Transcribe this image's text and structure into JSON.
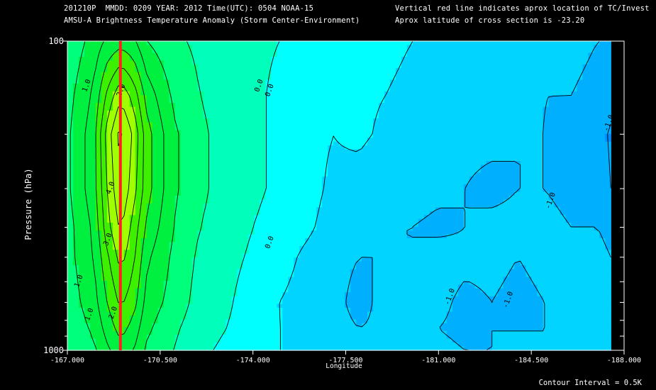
{
  "header": {
    "line1": "201210P  MMDD: 0209 YEAR: 2012 Time(UTC): 0504 NOAA-15",
    "line2": "AMSU-A Brightness Temperature Anomaly (Storm Center-Environment)",
    "line3": "Vertical red line indicates aprox location of TC/Invest",
    "line4": "Aprox latitude of cross section is -23.20"
  },
  "footer": {
    "contour_interval": "Contour Interval = 0.5K"
  },
  "colors": {
    "background": "#000000",
    "storm_line": "#ff2020",
    "levels": [
      "#008cff",
      "#00b0ff",
      "#00d4ff",
      "#00ffff",
      "#00ffbb",
      "#00ff7a",
      "#00f040",
      "#3cf000",
      "#a0ff00"
    ]
  },
  "chart_data": {
    "type": "heatmap",
    "subtype": "contour",
    "xlabel": "Longitude",
    "ylabel": "Pressure (hPa)",
    "x_ticks": [
      "-167.000",
      "-170.500",
      "-174.000",
      "-177.500",
      "-181.000",
      "-184.500",
      "-188.000"
    ],
    "y_ticks": [
      "100",
      "1000"
    ],
    "y_scale": "log",
    "xlim": [
      -167.0,
      -188.0
    ],
    "ylim": [
      1000,
      100
    ],
    "contour_interval_K": 0.5,
    "storm_longitude": -169.0,
    "longitudes": [
      -167.0,
      -168.0,
      -168.5,
      -169.0,
      -169.5,
      -170.0,
      -171.0,
      -172.0,
      -173.0,
      -174.0,
      -175.0,
      -176.0,
      -177.0,
      -178.0,
      -179.0,
      -180.0,
      -181.0,
      -182.0,
      -183.0,
      -184.0,
      -185.0,
      -186.0,
      -187.0,
      -187.5
    ],
    "pressures": [
      100,
      150,
      200,
      300,
      400,
      500,
      700,
      850,
      1000
    ],
    "anomaly_K": [
      [
        0.6,
        1.2,
        1.6,
        1.8,
        1.6,
        1.0,
        0.6,
        0.4,
        0.2,
        0.1,
        0.0,
        -0.1,
        -0.2,
        -0.3,
        -0.4,
        -0.5,
        -0.5,
        -0.6,
        -0.6,
        -0.7,
        -0.8,
        -0.9,
        -1.0,
        -1.0
      ],
      [
        0.8,
        1.6,
        2.6,
        3.4,
        2.8,
        1.8,
        0.9,
        0.5,
        0.3,
        0.1,
        -0.1,
        -0.3,
        -0.5,
        -0.4,
        -0.5,
        -0.6,
        -0.6,
        -0.7,
        -0.8,
        -0.9,
        -1.0,
        -1.0,
        -1.1,
        -1.2
      ],
      [
        0.9,
        1.8,
        3.2,
        4.2,
        3.4,
        2.2,
        1.1,
        0.6,
        0.3,
        0.1,
        -0.1,
        -0.3,
        -0.5,
        -0.4,
        -0.6,
        -0.7,
        -0.8,
        -0.9,
        -0.9,
        -1.0,
        -1.0,
        -1.1,
        -1.2,
        -1.6
      ],
      [
        0.9,
        1.8,
        3.0,
        4.0,
        3.2,
        2.2,
        1.1,
        0.6,
        0.3,
        0.1,
        -0.1,
        -0.3,
        -0.6,
        -0.7,
        -0.9,
        -0.8,
        -0.9,
        -1.0,
        -1.1,
        -1.0,
        -1.0,
        -1.1,
        -1.1,
        -1.5
      ],
      [
        0.8,
        1.6,
        2.8,
        3.6,
        2.8,
        1.9,
        1.0,
        0.5,
        0.3,
        0.0,
        -0.2,
        -0.4,
        -0.7,
        -0.9,
        -1.0,
        -1.0,
        -1.1,
        -1.0,
        -0.9,
        -0.9,
        -0.9,
        -1.0,
        -1.0,
        -1.2
      ],
      [
        0.8,
        1.5,
        2.4,
        3.2,
        2.6,
        1.6,
        0.9,
        0.4,
        0.2,
        -0.1,
        -0.3,
        -0.6,
        -0.8,
        -1.0,
        -1.0,
        -1.0,
        -0.8,
        -0.9,
        -0.9,
        -1.0,
        -0.9,
        -0.8,
        -0.8,
        -1.0
      ],
      [
        0.7,
        1.3,
        2.0,
        2.6,
        2.2,
        1.3,
        0.8,
        0.3,
        0.1,
        -0.3,
        -0.5,
        -0.7,
        -0.8,
        -1.2,
        -0.8,
        -0.9,
        -0.9,
        -1.1,
        -1.0,
        -1.1,
        -1.0,
        -0.9,
        -0.8,
        -0.9
      ],
      [
        0.6,
        1.1,
        1.7,
        2.2,
        1.8,
        1.1,
        0.6,
        0.2,
        0.0,
        -0.3,
        -0.5,
        -0.6,
        -0.8,
        -1.0,
        -0.9,
        -0.9,
        -1.0,
        -1.1,
        -1.0,
        -1.0,
        -1.0,
        -1.0,
        -0.9,
        -0.9
      ],
      [
        0.5,
        0.9,
        1.4,
        1.8,
        1.5,
        0.9,
        0.5,
        0.1,
        -0.1,
        -0.3,
        -0.5,
        -0.6,
        -0.8,
        -0.9,
        -0.8,
        -0.9,
        -0.9,
        -1.0,
        -1.0,
        -1.0,
        -1.0,
        -1.0,
        -1.0,
        -1.0
      ]
    ],
    "contour_labels": [
      {
        "text": "1.0",
        "lon": -167.8,
        "p": 140
      },
      {
        "text": "2.0",
        "lon": -169.1,
        "p": 145
      },
      {
        "text": "0.0",
        "lon": -174.3,
        "p": 140
      },
      {
        "text": "0.0",
        "lon": -174.7,
        "p": 145
      },
      {
        "text": "4.0",
        "lon": -168.7,
        "p": 300
      },
      {
        "text": "3.0",
        "lon": -168.6,
        "p": 440
      },
      {
        "text": "0.0",
        "lon": -174.7,
        "p": 450
      },
      {
        "text": "1.0",
        "lon": -167.5,
        "p": 600
      },
      {
        "text": "1.0",
        "lon": -167.9,
        "p": 770
      },
      {
        "text": "2.0",
        "lon": -168.8,
        "p": 760
      },
      {
        "text": "-1.0",
        "lon": -187.5,
        "p": 185
      },
      {
        "text": "-1.0",
        "lon": -185.3,
        "p": 330
      },
      {
        "text": "-1.0",
        "lon": -181.5,
        "p": 675
      },
      {
        "text": "-1.0",
        "lon": -183.7,
        "p": 690
      }
    ]
  }
}
